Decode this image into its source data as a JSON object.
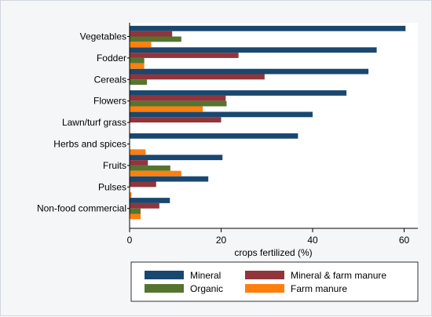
{
  "chart_data": {
    "type": "bar",
    "orientation": "horizontal",
    "categories": [
      "Vegetables",
      "Fodder",
      "Cereals",
      "Flowers",
      "Lawn/turf grass",
      "Herbs and spices",
      "Fruits",
      "Pulses",
      "Non-food commercial"
    ],
    "series": [
      {
        "name": "Mineral",
        "color": "#1a476f",
        "values": [
          60.3,
          54.0,
          52.2,
          47.4,
          40.0,
          36.8,
          20.3,
          17.2,
          8.8
        ]
      },
      {
        "name": "Mineral & farm manure",
        "color": "#90353b",
        "values": [
          9.3,
          23.8,
          29.5,
          21.0,
          20.0,
          0.0,
          4.0,
          5.8,
          6.5
        ]
      },
      {
        "name": "Organic",
        "color": "#55752f",
        "values": [
          11.3,
          3.2,
          3.8,
          21.2,
          0.0,
          0.0,
          8.9,
          0.0,
          2.4
        ]
      },
      {
        "name": "Farm manure",
        "color": "#ff7f0e",
        "values": [
          4.7,
          3.2,
          0.0,
          16.0,
          0.0,
          3.5,
          11.3,
          0.4,
          2.4
        ]
      }
    ],
    "xlabel": "crops fertilized (%)",
    "ylabel": "",
    "xlim": [
      0,
      63
    ],
    "xticks": [
      0,
      20,
      40,
      60
    ],
    "xtick_labels": [
      "0",
      "20",
      "40",
      "60"
    ],
    "legend_position": "bottom",
    "grid": false
  }
}
